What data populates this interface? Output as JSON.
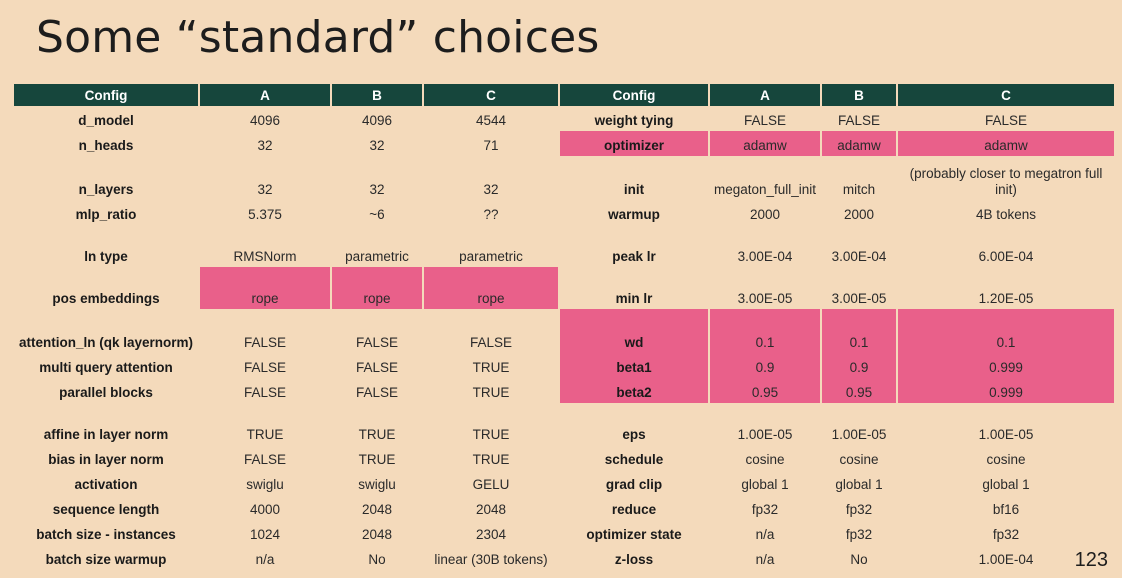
{
  "slide": {
    "title": "Some “standard” choices",
    "page_number": "123"
  },
  "colors": {
    "background": "#f4dabb",
    "header": "#16463c",
    "highlight": "#e9608a"
  },
  "left_table": {
    "headers": [
      "Config",
      "A",
      "B",
      "C"
    ],
    "rows": [
      {
        "key": "d_model",
        "a": "4096",
        "b": "4096",
        "c": "4544"
      },
      {
        "key": "n_heads",
        "a": "32",
        "b": "32",
        "c": "71"
      },
      {
        "key": "n_layers",
        "a": "32",
        "b": "32",
        "c": "32"
      },
      {
        "key": "mlp_ratio",
        "a": "5.375",
        "b": "~6",
        "c": "??"
      },
      {
        "key": "ln type",
        "a": "RMSNorm",
        "b": "parametric",
        "c": "parametric"
      },
      {
        "key": "pos embeddings",
        "a": "rope",
        "b": "rope",
        "c": "rope"
      },
      {
        "key": "attention_ln (qk layernorm)",
        "a": "FALSE",
        "b": "FALSE",
        "c": "FALSE"
      },
      {
        "key": "multi query attention",
        "a": "FALSE",
        "b": "FALSE",
        "c": "TRUE"
      },
      {
        "key": "parallel blocks",
        "a": "FALSE",
        "b": "FALSE",
        "c": "TRUE"
      },
      {
        "key": "affine in layer norm",
        "a": "TRUE",
        "b": "TRUE",
        "c": "TRUE"
      },
      {
        "key": "bias in layer norm",
        "a": "FALSE",
        "b": "TRUE",
        "c": "TRUE"
      },
      {
        "key": "activation",
        "a": "swiglu",
        "b": "swiglu",
        "c": "GELU"
      },
      {
        "key": "sequence length",
        "a": "4000",
        "b": "2048",
        "c": "2048"
      },
      {
        "key": "batch size - instances",
        "a": "1024",
        "b": "2048",
        "c": "2304"
      },
      {
        "key": "batch size warmup",
        "a": "n/a",
        "b": "No",
        "c": "linear (30B tokens)"
      }
    ]
  },
  "right_table": {
    "headers": [
      "Config",
      "A",
      "B",
      "C"
    ],
    "rows": [
      {
        "key": "weight tying",
        "a": "FALSE",
        "b": "FALSE",
        "c": "FALSE"
      },
      {
        "key": "optimizer",
        "a": "adamw",
        "b": "adamw",
        "c": "adamw"
      },
      {
        "key": "init",
        "a": "megaton_full_init",
        "b": "mitch",
        "c": "(probably closer to megatron full init)"
      },
      {
        "key": "warmup",
        "a": "2000",
        "b": "2000",
        "c": "4B tokens"
      },
      {
        "key": "peak lr",
        "a": "3.00E-04",
        "b": "3.00E-04",
        "c": "6.00E-04"
      },
      {
        "key": "min lr",
        "a": "3.00E-05",
        "b": "3.00E-05",
        "c": "1.20E-05"
      },
      {
        "key": "wd",
        "a": "0.1",
        "b": "0.1",
        "c": "0.1"
      },
      {
        "key": "beta1",
        "a": "0.9",
        "b": "0.9",
        "c": "0.999"
      },
      {
        "key": "beta2",
        "a": "0.95",
        "b": "0.95",
        "c": "0.999"
      },
      {
        "key": "eps",
        "a": "1.00E-05",
        "b": "1.00E-05",
        "c": "1.00E-05"
      },
      {
        "key": "schedule",
        "a": "cosine",
        "b": "cosine",
        "c": "cosine"
      },
      {
        "key": "grad clip",
        "a": "global 1",
        "b": "global 1",
        "c": "global 1"
      },
      {
        "key": "reduce",
        "a": "fp32",
        "b": "fp32",
        "c": "bf16"
      },
      {
        "key": "optimizer state",
        "a": "n/a",
        "b": "fp32",
        "c": "fp32"
      },
      {
        "key": "z-loss",
        "a": "n/a",
        "b": "No",
        "c": "1.00E-04"
      }
    ]
  }
}
